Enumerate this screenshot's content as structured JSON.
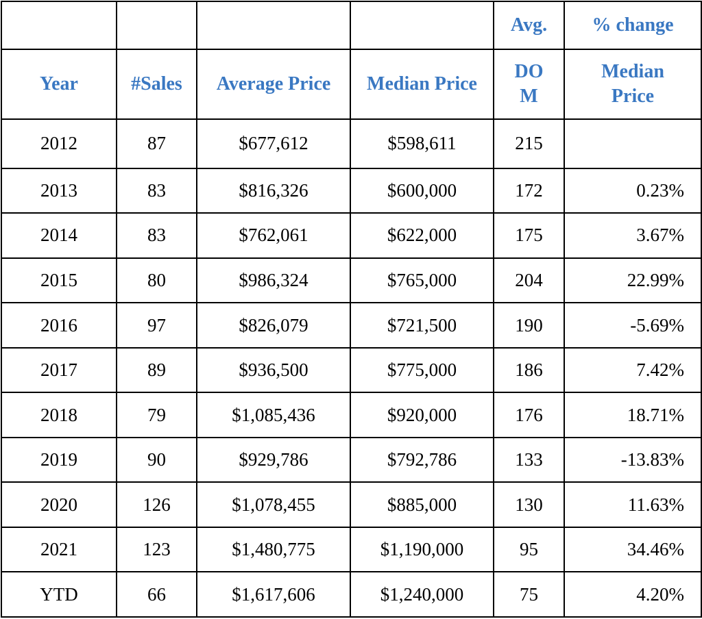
{
  "table": {
    "header_top": [
      "",
      "",
      "",
      "",
      "Avg.",
      "% change"
    ],
    "header_main": [
      "Year",
      "#Sales",
      "Average Price",
      "Median Price",
      "DO M",
      "Median Price"
    ],
    "header_main_lines": {
      "dom": [
        "DO",
        "M"
      ],
      "pct": [
        "Median",
        "Price"
      ]
    },
    "rows": [
      {
        "year": "2012",
        "sales": "87",
        "avg": "$677,612",
        "median": "$598,611",
        "dom": "215",
        "pct": ""
      },
      {
        "year": "2013",
        "sales": "83",
        "avg": "$816,326",
        "median": "$600,000",
        "dom": "172",
        "pct": "0.23%"
      },
      {
        "year": "2014",
        "sales": "83",
        "avg": "$762,061",
        "median": "$622,000",
        "dom": "175",
        "pct": "3.67%"
      },
      {
        "year": "2015",
        "sales": "80",
        "avg": "$986,324",
        "median": "$765,000",
        "dom": "204",
        "pct": "22.99%"
      },
      {
        "year": "2016",
        "sales": "97",
        "avg": "$826,079",
        "median": "$721,500",
        "dom": "190",
        "pct": "-5.69%"
      },
      {
        "year": "2017",
        "sales": "89",
        "avg": "$936,500",
        "median": "$775,000",
        "dom": "186",
        "pct": "7.42%"
      },
      {
        "year": "2018",
        "sales": "79",
        "avg": "$1,085,436",
        "median": "$920,000",
        "dom": "176",
        "pct": "18.71%"
      },
      {
        "year": "2019",
        "sales": "90",
        "avg": "$929,786",
        "median": "$792,786",
        "dom": "133",
        "pct": "-13.83%"
      },
      {
        "year": "2020",
        "sales": "126",
        "avg": "$1,078,455",
        "median": "$885,000",
        "dom": "130",
        "pct": "11.63%"
      },
      {
        "year": "2021",
        "sales": "123",
        "avg": "$1,480,775",
        "median": "$1,190,000",
        "dom": "95",
        "pct": "34.46%"
      },
      {
        "year": "YTD",
        "sales": "66",
        "avg": "$1,617,606",
        "median": "$1,240,000",
        "dom": "75",
        "pct": "4.20%"
      }
    ]
  },
  "colors": {
    "header_text": "#3a78c2",
    "body_text": "#000000",
    "border": "#000000"
  }
}
